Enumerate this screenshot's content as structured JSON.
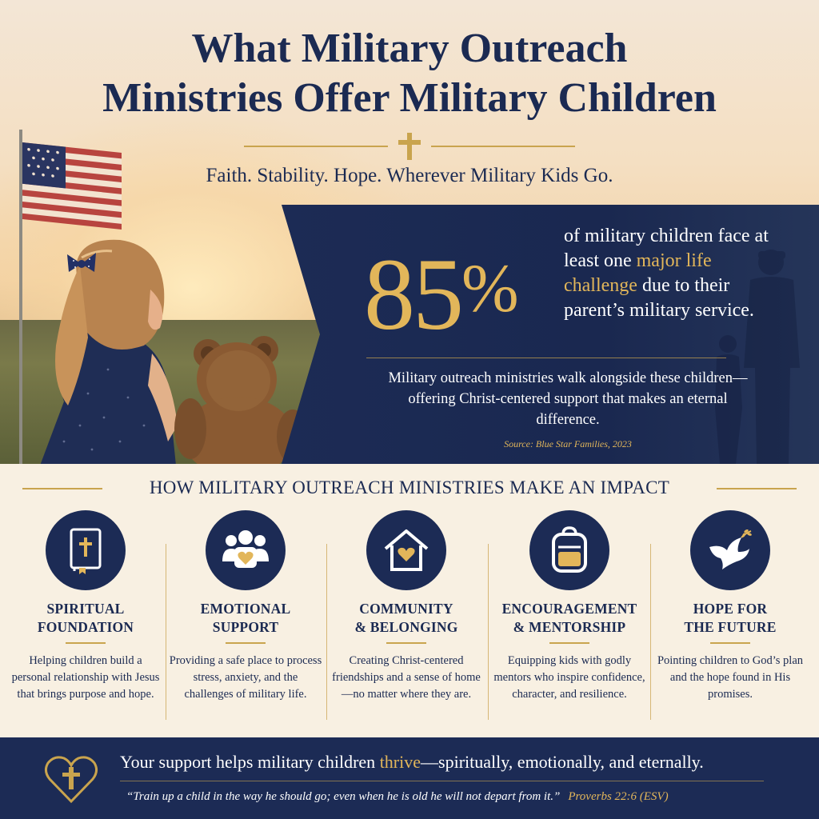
{
  "title": {
    "line1": "What Military Outreach",
    "line2": "Ministries Offer Military Children"
  },
  "subtitle": "Faith. Stability. Hope. Wherever Military Kids Go.",
  "stat": {
    "value": "85",
    "unit": "%",
    "text_before": "of military children face at least one",
    "text_highlight": "major life challenge",
    "text_after": "due to their parent’s military service.",
    "body": "Military outreach ministries walk alongside these children—offering Christ-centered support that makes an eternal difference.",
    "source": "Source: Blue Star Families, 2023"
  },
  "impact": {
    "heading": "HOW MILITARY OUTREACH MINISTRIES MAKE AN IMPACT",
    "items": [
      {
        "icon": "bible-icon",
        "title_line1": "SPIRITUAL",
        "title_line2": "FOUNDATION",
        "description": "Helping children build a personal relationship with Jesus that brings purpose and hope."
      },
      {
        "icon": "people-heart-icon",
        "title_line1": "EMOTIONAL",
        "title_line2": "SUPPORT",
        "description": "Providing a safe place to process stress, anxiety, and the challenges of military life."
      },
      {
        "icon": "house-heart-icon",
        "title_line1": "COMMUNITY",
        "title_line2": "& BELONGING",
        "description": "Creating Christ-centered friendships and a sense of home—no matter where they are."
      },
      {
        "icon": "backpack-icon",
        "title_line1": "ENCOURAGEMENT",
        "title_line2": "& MENTORSHIP",
        "description": "Equipping kids with godly mentors who inspire confidence, character, and resilience."
      },
      {
        "icon": "dove-icon",
        "title_line1": "HOPE FOR",
        "title_line2": "THE FUTURE",
        "description": "Pointing children to God’s plan and the hope found in His promises."
      }
    ]
  },
  "footer": {
    "text_before": "Your support helps military children ",
    "text_highlight": "thrive",
    "text_after": "—spiritually, emotionally, and eternally.",
    "quote": "“Train up a child in the way he should go; even when he is old he will not depart from it.”",
    "reference": "Proverbs 22:6 (ESV)"
  },
  "colors": {
    "navy": "#1c2b55",
    "gold": "#e2b65a",
    "cream": "#f8f0e2"
  }
}
